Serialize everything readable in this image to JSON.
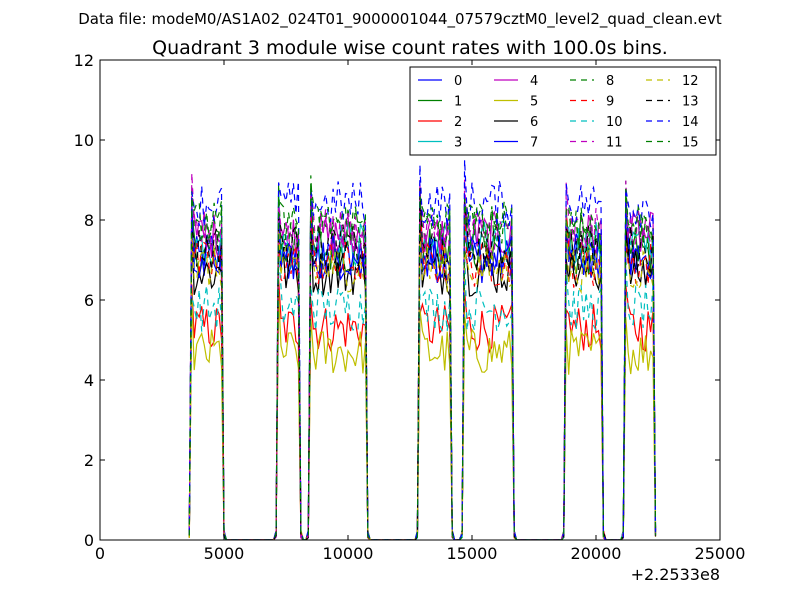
{
  "chart_data": {
    "type": "line",
    "suptitle": "Data file: modeM0/AS1A02_024T01_9000001044_07579cztM0_level2_quad_clean.evt",
    "title": "Quadrant 3 module wise count rates with 100.0s bins.",
    "xlabel": "",
    "ylabel": "",
    "xlim": [
      0,
      25000
    ],
    "ylim": [
      0,
      12
    ],
    "x_offset_label": "+2.2533e8",
    "x_ticks": [
      0,
      5000,
      10000,
      15000,
      20000,
      25000
    ],
    "x_tick_labels": [
      "0",
      "5000",
      "10000",
      "15000",
      "20000",
      "25000"
    ],
    "y_ticks": [
      0,
      2,
      4,
      6,
      8,
      10,
      12
    ],
    "y_tick_labels": [
      "0",
      "2",
      "4",
      "6",
      "8",
      "10",
      "12"
    ],
    "grid": false,
    "legend_position": "top-right",
    "legend_columns": 4,
    "segments": [
      {
        "start": 3600,
        "end": 5000
      },
      {
        "start": 7100,
        "end": 8100
      },
      {
        "start": 8400,
        "end": 10800
      },
      {
        "start": 12800,
        "end": 14200
      },
      {
        "start": 14600,
        "end": 16700
      },
      {
        "start": 18700,
        "end": 20300
      },
      {
        "start": 21100,
        "end": 22400
      }
    ],
    "series": [
      {
        "name": "0",
        "color": "#0000ff",
        "dashed": false,
        "level": 7.0
      },
      {
        "name": "1",
        "color": "#008000",
        "dashed": false,
        "level": 7.2
      },
      {
        "name": "2",
        "color": "#ff0000",
        "dashed": false,
        "level": 5.3
      },
      {
        "name": "3",
        "color": "#00bfbf",
        "dashed": false,
        "level": 7.4
      },
      {
        "name": "4",
        "color": "#bf00bf",
        "dashed": false,
        "level": 7.6
      },
      {
        "name": "5",
        "color": "#bfbf00",
        "dashed": false,
        "level": 4.7
      },
      {
        "name": "6",
        "color": "#000000",
        "dashed": false,
        "level": 6.7
      },
      {
        "name": "7",
        "color": "#0000ff",
        "dashed": false,
        "level": 7.1
      },
      {
        "name": "8",
        "color": "#008000",
        "dashed": true,
        "level": 7.8
      },
      {
        "name": "9",
        "color": "#ff0000",
        "dashed": true,
        "level": 6.9
      },
      {
        "name": "10",
        "color": "#00bfbf",
        "dashed": true,
        "level": 5.8
      },
      {
        "name": "11",
        "color": "#bf00bf",
        "dashed": true,
        "level": 7.7
      },
      {
        "name": "12",
        "color": "#bfbf00",
        "dashed": true,
        "level": 6.8
      },
      {
        "name": "13",
        "color": "#000000",
        "dashed": true,
        "level": 7.3
      },
      {
        "name": "14",
        "color": "#0000ff",
        "dashed": true,
        "level": 8.4
      },
      {
        "name": "15",
        "color": "#008000",
        "dashed": true,
        "level": 7.9
      }
    ]
  }
}
